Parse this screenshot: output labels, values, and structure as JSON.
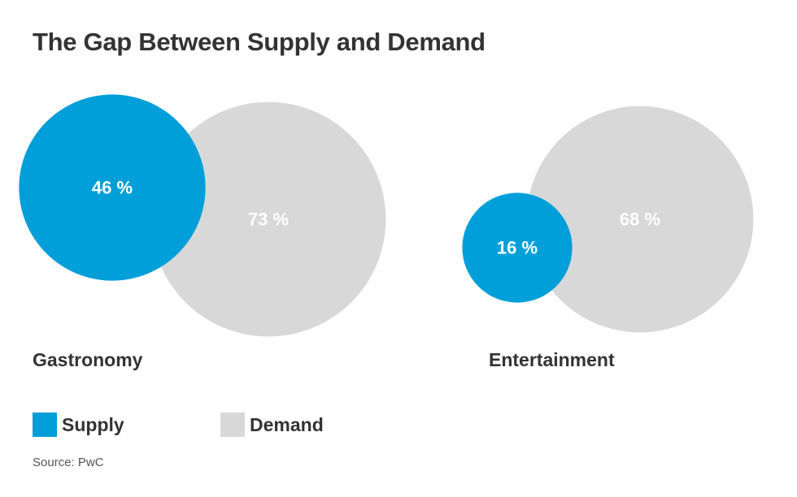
{
  "title": "The Gap Between Supply and Demand",
  "colors": {
    "supply": "#009fd9",
    "demand": "#d8d8d8",
    "text_dark": "#333333",
    "value_text": "#ffffff"
  },
  "legend": {
    "supply_label": "Supply",
    "demand_label": "Demand"
  },
  "source": "Source: PwC",
  "chart_data": {
    "type": "bubble",
    "title": "The Gap Between Supply and Demand",
    "series": [
      {
        "name": "Supply",
        "color": "#009fd9"
      },
      {
        "name": "Demand",
        "color": "#d8d8d8"
      }
    ],
    "groups": [
      {
        "category": "Gastronomy",
        "supply": 46,
        "demand": 73,
        "supply_label": "46 %",
        "demand_label": "73 %"
      },
      {
        "category": "Entertainment",
        "supply": 16,
        "demand": 68,
        "supply_label": "16 %",
        "demand_label": "68 %"
      }
    ],
    "unit": "%",
    "legend_position": "bottom-left"
  }
}
